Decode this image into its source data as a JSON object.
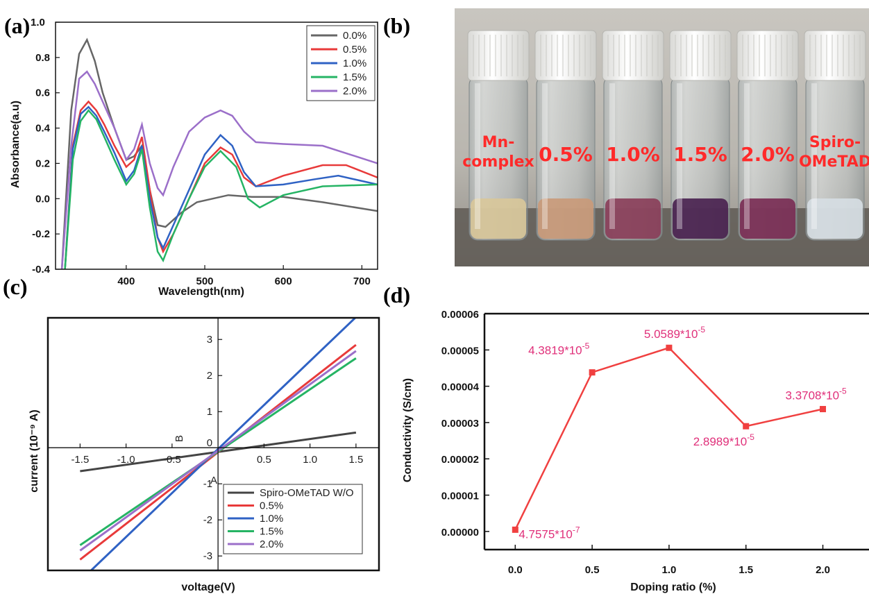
{
  "panels": {
    "a": "(a)",
    "b": "(b)",
    "c": "(c)",
    "d": "(d)"
  },
  "chart_data": [
    {
      "id": "a",
      "type": "line",
      "xlabel": "Wavelength(nm)",
      "ylabel": "Absorbance(a.u)",
      "xlim": [
        310,
        720
      ],
      "ylim": [
        -0.4,
        1.0
      ],
      "xticks": [
        400,
        500,
        600,
        700
      ],
      "yticks": [
        -0.4,
        -0.2,
        0.0,
        0.2,
        0.4,
        0.6,
        0.8,
        1.0
      ],
      "ytick_labels": [
        "-0.4",
        "-0.2",
        "0.0",
        "0.2",
        "0.4",
        "0.6",
        "0.8",
        "1.0"
      ],
      "legend_position": "top-right",
      "series": [
        {
          "name": "0.0%",
          "color": "#666666",
          "x": [
            318,
            330,
            340,
            350,
            360,
            370,
            385,
            400,
            410,
            420,
            430,
            440,
            450,
            470,
            490,
            510,
            530,
            560,
            600,
            650,
            720
          ],
          "y": [
            -0.4,
            0.5,
            0.82,
            0.9,
            0.78,
            0.6,
            0.4,
            0.22,
            0.24,
            0.3,
            0.05,
            -0.15,
            -0.16,
            -0.08,
            -0.02,
            0.0,
            0.02,
            0.01,
            0.01,
            -0.02,
            -0.07
          ]
        },
        {
          "name": "0.5%",
          "color": "#e83a3a",
          "x": [
            322,
            332,
            342,
            352,
            362,
            372,
            385,
            400,
            410,
            420,
            430,
            440,
            447,
            460,
            480,
            500,
            520,
            535,
            550,
            565,
            600,
            650,
            680,
            720
          ],
          "y": [
            -0.4,
            0.3,
            0.5,
            0.55,
            0.5,
            0.42,
            0.3,
            0.18,
            0.22,
            0.35,
            0.05,
            -0.22,
            -0.3,
            -0.2,
            0.0,
            0.2,
            0.29,
            0.25,
            0.12,
            0.07,
            0.13,
            0.19,
            0.19,
            0.12
          ]
        },
        {
          "name": "1.0%",
          "color": "#2f62c4",
          "x": [
            322,
            332,
            342,
            352,
            362,
            372,
            385,
            400,
            410,
            420,
            430,
            440,
            447,
            460,
            480,
            500,
            520,
            535,
            550,
            565,
            600,
            640,
            670,
            720
          ],
          "y": [
            -0.4,
            0.28,
            0.48,
            0.52,
            0.47,
            0.38,
            0.26,
            0.1,
            0.16,
            0.3,
            0.0,
            -0.22,
            -0.28,
            -0.15,
            0.05,
            0.25,
            0.36,
            0.3,
            0.15,
            0.07,
            0.08,
            0.11,
            0.13,
            0.08
          ]
        },
        {
          "name": "1.5%",
          "color": "#25b464",
          "x": [
            322,
            332,
            342,
            352,
            362,
            372,
            385,
            400,
            410,
            420,
            430,
            440,
            447,
            460,
            480,
            500,
            520,
            540,
            555,
            570,
            600,
            650,
            720
          ],
          "y": [
            -0.4,
            0.22,
            0.44,
            0.5,
            0.45,
            0.35,
            0.22,
            0.08,
            0.14,
            0.28,
            -0.05,
            -0.3,
            -0.35,
            -0.2,
            0.0,
            0.18,
            0.27,
            0.18,
            0.0,
            -0.05,
            0.02,
            0.07,
            0.08
          ]
        },
        {
          "name": "2.0%",
          "color": "#9b6fc9",
          "x": [
            318,
            330,
            340,
            350,
            360,
            370,
            385,
            400,
            410,
            420,
            430,
            440,
            447,
            460,
            480,
            500,
            520,
            535,
            550,
            565,
            600,
            650,
            720
          ],
          "y": [
            -0.4,
            0.3,
            0.68,
            0.72,
            0.65,
            0.55,
            0.4,
            0.22,
            0.28,
            0.42,
            0.2,
            0.06,
            0.02,
            0.18,
            0.38,
            0.46,
            0.5,
            0.47,
            0.38,
            0.32,
            0.31,
            0.3,
            0.2
          ]
        }
      ]
    },
    {
      "id": "c",
      "type": "line",
      "xlabel": "voltage(V)",
      "ylabel": "current (10⁻⁹ A)",
      "xlim": [
        -1.85,
        1.75
      ],
      "ylim": [
        -3.4,
        3.6
      ],
      "xticks": [
        -1.5,
        -1.0,
        -0.5,
        0.5,
        1.0,
        1.5
      ],
      "xtick_labels": [
        "-1.5",
        "-1.0",
        "-0.5",
        "0.5",
        "1.0",
        "1.5"
      ],
      "yticks": [
        -3,
        -2,
        -1,
        1,
        2,
        3
      ],
      "ytick_labels": [
        "-3",
        "-2",
        "-1",
        "1",
        "2",
        "3"
      ],
      "origin_label": "0",
      "axis_letter_y": "B",
      "axis_letter_x": "A",
      "legend_position": "bottom-right",
      "series": [
        {
          "name": "Spiro-OMeTAD W/O",
          "color": "#444444",
          "x": [
            -1.5,
            1.5
          ],
          "y": [
            -0.65,
            0.42
          ]
        },
        {
          "name": "0.5%",
          "color": "#e83a3a",
          "x": [
            -1.5,
            1.5
          ],
          "y": [
            -3.1,
            2.85
          ]
        },
        {
          "name": "1.0%",
          "color": "#2f62c4",
          "x": [
            -1.38,
            1.5
          ],
          "y": [
            -3.4,
            3.62
          ]
        },
        {
          "name": "1.5%",
          "color": "#25b464",
          "x": [
            -1.5,
            1.5
          ],
          "y": [
            -2.7,
            2.48
          ]
        },
        {
          "name": "2.0%",
          "color": "#9b6fc9",
          "x": [
            -1.5,
            1.5
          ],
          "y": [
            -2.85,
            2.68
          ]
        }
      ]
    },
    {
      "id": "d",
      "type": "line",
      "xlabel": "Doping ratio (%)",
      "ylabel": "Conductivity (S/cm)",
      "xlim": [
        -0.2,
        2.3
      ],
      "ylim": [
        -5e-06,
        6e-05
      ],
      "xticks": [
        0.0,
        0.5,
        1.0,
        1.5,
        2.0
      ],
      "xtick_labels": [
        "0.0",
        "0.5",
        "1.0",
        "1.5",
        "2.0"
      ],
      "yticks": [
        0,
        1e-05,
        2e-05,
        3e-05,
        4e-05,
        5e-05,
        6e-05
      ],
      "ytick_labels": [
        "0.00000",
        "0.00001",
        "0.00002",
        "0.00003",
        "0.00004",
        "0.00005",
        "0.00006"
      ],
      "color": "#f04040",
      "label_color": "#e0307a",
      "x": [
        0.0,
        0.5,
        1.0,
        1.5,
        2.0
      ],
      "y": [
        4.7575e-07,
        4.3819e-05,
        5.0589e-05,
        2.8989e-05,
        3.3708e-05
      ],
      "data_labels": [
        {
          "base": "4.7575*10",
          "exp": "-7"
        },
        {
          "base": "4.3819*10",
          "exp": "-5"
        },
        {
          "base": "5.0589*10",
          "exp": "-5"
        },
        {
          "base": "2.8989*10",
          "exp": "-5"
        },
        {
          "base": "3.3708*10",
          "exp": "-5"
        }
      ]
    }
  ],
  "photo": {
    "vials": [
      {
        "label_lines": [
          "Mn-",
          "complex"
        ],
        "liquid": "#d8c79a"
      },
      {
        "label_lines": [
          "0.5%"
        ],
        "liquid": "#c99a7a"
      },
      {
        "label_lines": [
          "1.0%"
        ],
        "liquid": "#8a3f5a"
      },
      {
        "label_lines": [
          "1.5%"
        ],
        "liquid": "#4a2350"
      },
      {
        "label_lines": [
          "2.0%"
        ],
        "liquid": "#7a2e55"
      },
      {
        "label_lines": [
          "Spiro-",
          "OMeTAD"
        ],
        "liquid": "#d6dde3"
      }
    ]
  }
}
